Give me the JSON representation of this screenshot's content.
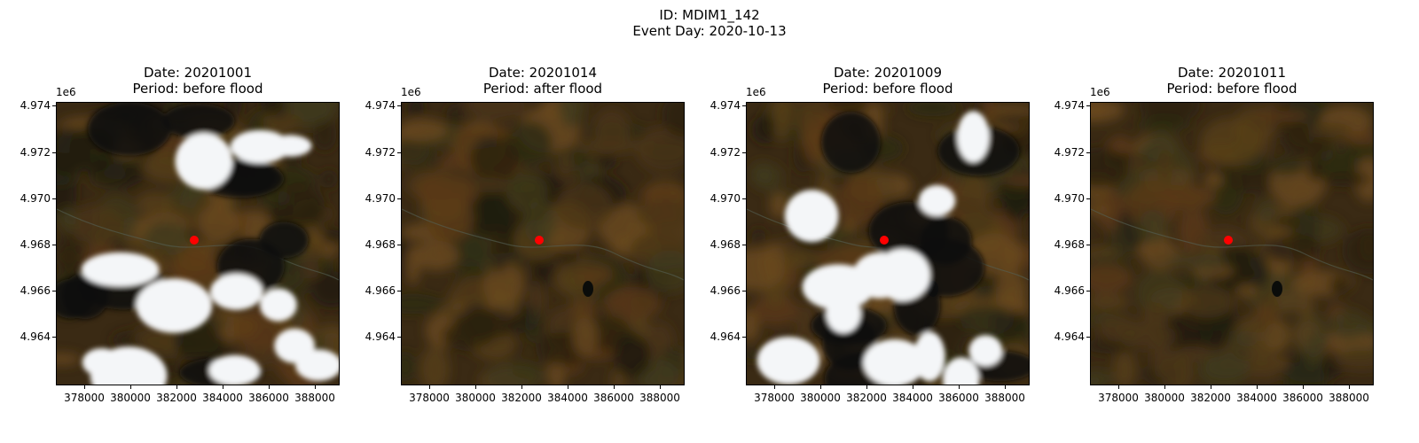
{
  "figure": {
    "id_line": "ID: MDIM1_142",
    "event_line": "Event Day: 2020-10-13"
  },
  "axis_offset_label": "1e6",
  "y_ticks": [
    "4.974",
    "4.972",
    "4.970",
    "4.968",
    "4.966",
    "4.964"
  ],
  "x_ticks": [
    "378000",
    "380000",
    "382000",
    "384000",
    "386000",
    "388000"
  ],
  "marker_color": "#ff0000",
  "panels": [
    {
      "date_line": "Date: 20201001",
      "period_line": "Period: before flood",
      "cloud_cover": "heavy"
    },
    {
      "date_line": "Date: 20201014",
      "period_line": "Period: after flood",
      "cloud_cover": "none"
    },
    {
      "date_line": "Date: 20201009",
      "period_line": "Period: before flood",
      "cloud_cover": "heavy"
    },
    {
      "date_line": "Date: 20201011",
      "period_line": "Period: before flood",
      "cloud_cover": "none"
    }
  ]
}
